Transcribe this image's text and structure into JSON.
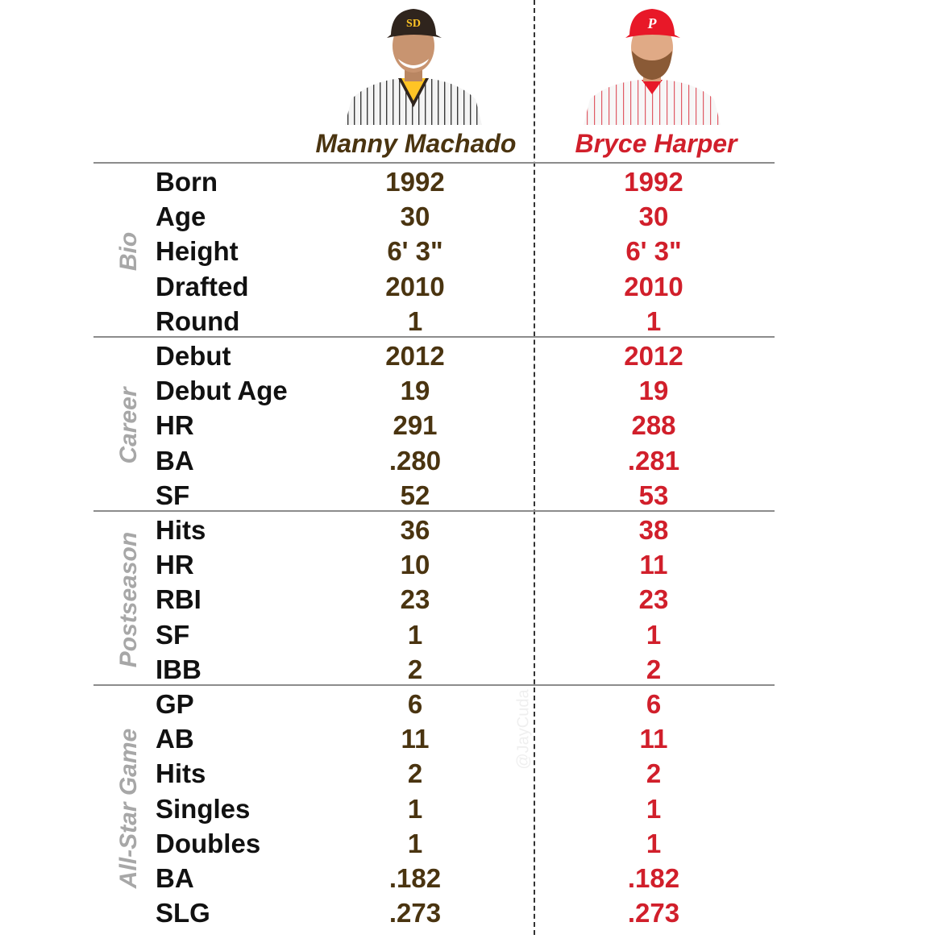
{
  "players": [
    {
      "name": "Manny Machado",
      "color": "#4a3410",
      "cap_color": "#2f241d",
      "cap_logo": "SD",
      "cap_logo_color": "#ffc425"
    },
    {
      "name": "Bryce Harper",
      "color": "#d11f2b",
      "cap_color": "#e81828",
      "cap_logo": "P",
      "cap_logo_color": "#ffffff"
    }
  ],
  "watermark": "@JayCuda",
  "sections": [
    {
      "label": "Bio",
      "rows": [
        {
          "stat": "Born",
          "machado": "1992",
          "harper": "1992"
        },
        {
          "stat": "Age",
          "machado": "30",
          "harper": "30"
        },
        {
          "stat": "Height",
          "machado": "6' 3\"",
          "harper": "6' 3\""
        },
        {
          "stat": "Drafted",
          "machado": "2010",
          "harper": "2010"
        },
        {
          "stat": "Round",
          "machado": "1",
          "harper": "1"
        }
      ]
    },
    {
      "label": "Career",
      "rows": [
        {
          "stat": "Debut",
          "machado": "2012",
          "harper": "2012"
        },
        {
          "stat": "Debut Age",
          "machado": "19",
          "harper": "19"
        },
        {
          "stat": "HR",
          "machado": "291",
          "harper": "288"
        },
        {
          "stat": "BA",
          "machado": ".280",
          "harper": ".281"
        },
        {
          "stat": "SF",
          "machado": "52",
          "harper": "53"
        }
      ]
    },
    {
      "label": "Postseason",
      "rows": [
        {
          "stat": "Hits",
          "machado": "36",
          "harper": "38"
        },
        {
          "stat": "HR",
          "machado": "10",
          "harper": "11"
        },
        {
          "stat": "RBI",
          "machado": "23",
          "harper": "23"
        },
        {
          "stat": "SF",
          "machado": "1",
          "harper": "1"
        },
        {
          "stat": "IBB",
          "machado": "2",
          "harper": "2"
        }
      ]
    },
    {
      "label": "All-Star Game",
      "rows": [
        {
          "stat": "GP",
          "machado": "6",
          "harper": "6"
        },
        {
          "stat": "AB",
          "machado": "11",
          "harper": "11"
        },
        {
          "stat": "Hits",
          "machado": "2",
          "harper": "2"
        },
        {
          "stat": "Singles",
          "machado": "1",
          "harper": "1"
        },
        {
          "stat": "Doubles",
          "machado": "1",
          "harper": "1"
        },
        {
          "stat": "BA",
          "machado": ".182",
          "harper": ".182"
        },
        {
          "stat": "SLG",
          "machado": ".273",
          "harper": ".273"
        }
      ]
    }
  ]
}
